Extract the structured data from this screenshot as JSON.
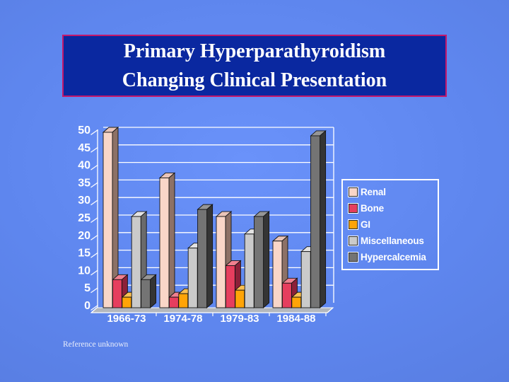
{
  "slide": {
    "title_line1": "Primary Hyperparathyroidism",
    "title_line2": "Changing Clinical Presentation",
    "footer": "Reference unknown"
  },
  "colors": {
    "background_center": "#6a92fa",
    "background_edge": "#5478da",
    "title_box_fill": "#0a28a0",
    "title_box_border": "#c4176b",
    "text": "#ffffff",
    "axis_and_grid": "#ffffff",
    "floor": "#b3b7bd",
    "bar_outline": "#141414"
  },
  "chart_data": {
    "type": "bar",
    "projection": "3d-clustered",
    "title": "",
    "xlabel": "",
    "ylabel": "",
    "categories": [
      "1966-73",
      "1974-78",
      "1979-83",
      "1984-88"
    ],
    "series": [
      {
        "name": "Renal",
        "color": "#f9d6c8",
        "side": "#8d7166",
        "top": "#e9c4b8",
        "values": [
          50,
          37,
          26,
          19
        ]
      },
      {
        "name": "Bone",
        "color": "#e63e5e",
        "side": "#8c2038",
        "top": "#f0808f",
        "values": [
          8,
          3,
          12,
          7
        ]
      },
      {
        "name": "GI",
        "color": "#ffa407",
        "side": "#a16a0b",
        "top": "#fdc050",
        "values": [
          3,
          4,
          5,
          3
        ]
      },
      {
        "name": "Miscellaneous",
        "color": "#cacaca",
        "side": "#6a6a6a",
        "top": "#e3e3e3",
        "values": [
          26,
          17,
          21,
          16
        ]
      },
      {
        "name": "Hypercalcemia",
        "color": "#747474",
        "side": "#353535",
        "top": "#969696",
        "values": [
          8,
          28,
          26,
          49
        ]
      }
    ],
    "ylim": [
      0,
      50
    ],
    "yticks": [
      0,
      5,
      10,
      15,
      20,
      25,
      30,
      35,
      40,
      45,
      50
    ],
    "grid": true,
    "legend_position": "right"
  }
}
